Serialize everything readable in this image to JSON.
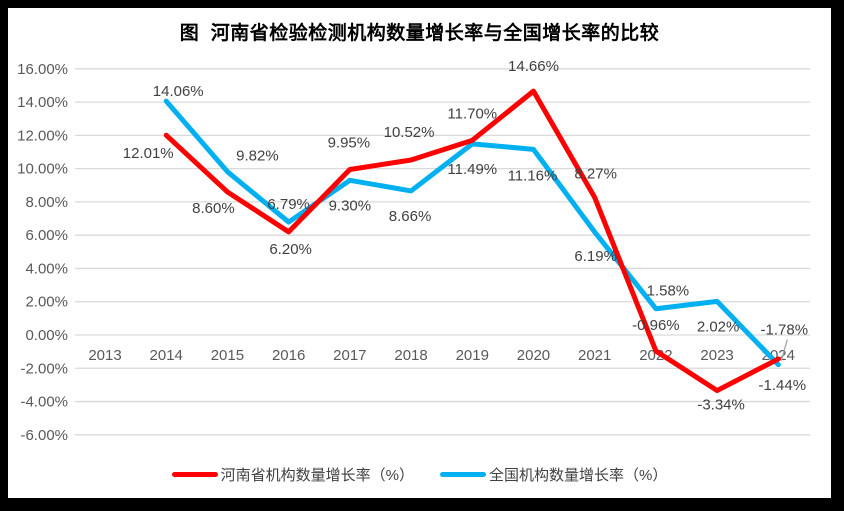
{
  "frame": {
    "background": "#000000",
    "canvas": "#ffffff"
  },
  "chart_data": {
    "type": "line",
    "title": "图  河南省检验检测机构数量增长率与全国增长率的比较",
    "categories": [
      "2013",
      "2014",
      "2015",
      "2016",
      "2017",
      "2018",
      "2019",
      "2020",
      "2021",
      "2022",
      "2023",
      "2024"
    ],
    "series": [
      {
        "name": "河南省机构数量增长率（%）",
        "color": "#FF0000",
        "values": [
          null,
          12.01,
          8.6,
          6.2,
          9.95,
          10.52,
          11.7,
          14.66,
          8.27,
          -0.96,
          -3.34,
          -1.44
        ],
        "point_labels": [
          "",
          "12.01%",
          "8.60%",
          "6.20%",
          "9.95%",
          "10.52%",
          "11.70%",
          "14.66%",
          "8.27%",
          "-0.96%",
          "-3.34%",
          "-1.44%"
        ]
      },
      {
        "name": "全国机构数量增长率（%）",
        "color": "#00B0F0",
        "values": [
          null,
          14.06,
          9.82,
          6.79,
          9.3,
          8.66,
          11.49,
          11.16,
          6.19,
          1.58,
          2.02,
          -1.78
        ],
        "point_labels": [
          "",
          "14.06%",
          "9.82%",
          "6.79%",
          "9.30%",
          "8.66%",
          "11.49%",
          "11.16%",
          "6.19%",
          "1.58%",
          "2.02%",
          "-1.78%"
        ]
      }
    ],
    "y_axis": {
      "max": 16,
      "min": -6,
      "step": 2,
      "tick_labels": [
        "16.00%",
        "14.00%",
        "12.00%",
        "10.00%",
        "8.00%",
        "6.00%",
        "4.00%",
        "2.00%",
        "0.00%",
        "-2.00%",
        "-4.00%",
        "-6.00%"
      ]
    },
    "grid": true,
    "legend_position": "bottom",
    "colors": {
      "gridline": "#D9D9D9",
      "axis_text": "#595959",
      "data_label_text": "#404040",
      "leader_line": "#A6A6A6"
    }
  }
}
